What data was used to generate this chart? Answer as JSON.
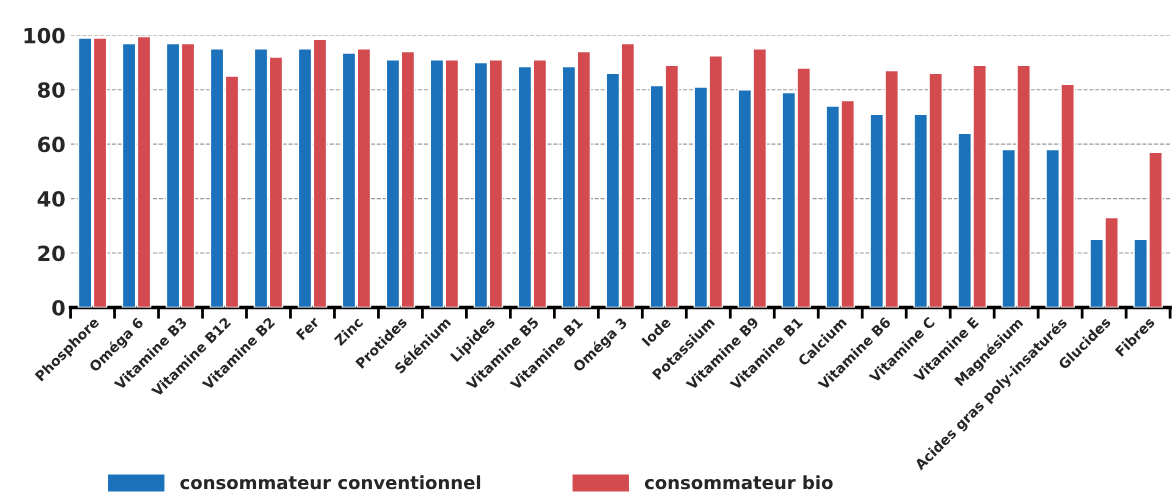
{
  "chart_data": {
    "type": "bar",
    "categories": [
      "Phosphore",
      "Oméga 6",
      "Vitamine B3",
      "Vitamine B12",
      "Vitamine B2",
      "Fer",
      "Zinc",
      "Protides",
      "Sélénium",
      "Lipides",
      "Vitamine B5",
      "Vitamine B1",
      "Oméga 3",
      "Iode",
      "Potassium",
      "Vitamine B9",
      "Vitamine B1",
      "Calcium",
      "Vitamine B6",
      "Vitamine C",
      "Vitamine E",
      "Magnésium",
      "Acides gras poly-insaturés",
      "Glucides",
      "Fibres"
    ],
    "series": [
      {
        "name": "consommateur conventionnel",
        "color": "#1b72bb",
        "values": [
          99,
          97,
          97,
          95,
          95,
          95,
          93.5,
          91,
          91,
          90,
          88.5,
          88.5,
          86,
          81.5,
          81,
          80,
          79,
          74,
          71,
          71,
          64,
          58,
          58,
          25,
          25
        ]
      },
      {
        "name": "consommateur bio",
        "color": "#d34b4f",
        "values": [
          99,
          99.5,
          97,
          85,
          92,
          98.5,
          95,
          94,
          91,
          91,
          91,
          94,
          97,
          89,
          92.5,
          95,
          88,
          76,
          87,
          86,
          89,
          89,
          82,
          33,
          57
        ]
      }
    ],
    "ylim": [
      0,
      100
    ],
    "yticks": [
      0,
      20,
      40,
      60,
      80,
      100
    ],
    "grid": "y",
    "legend": "bottom"
  }
}
